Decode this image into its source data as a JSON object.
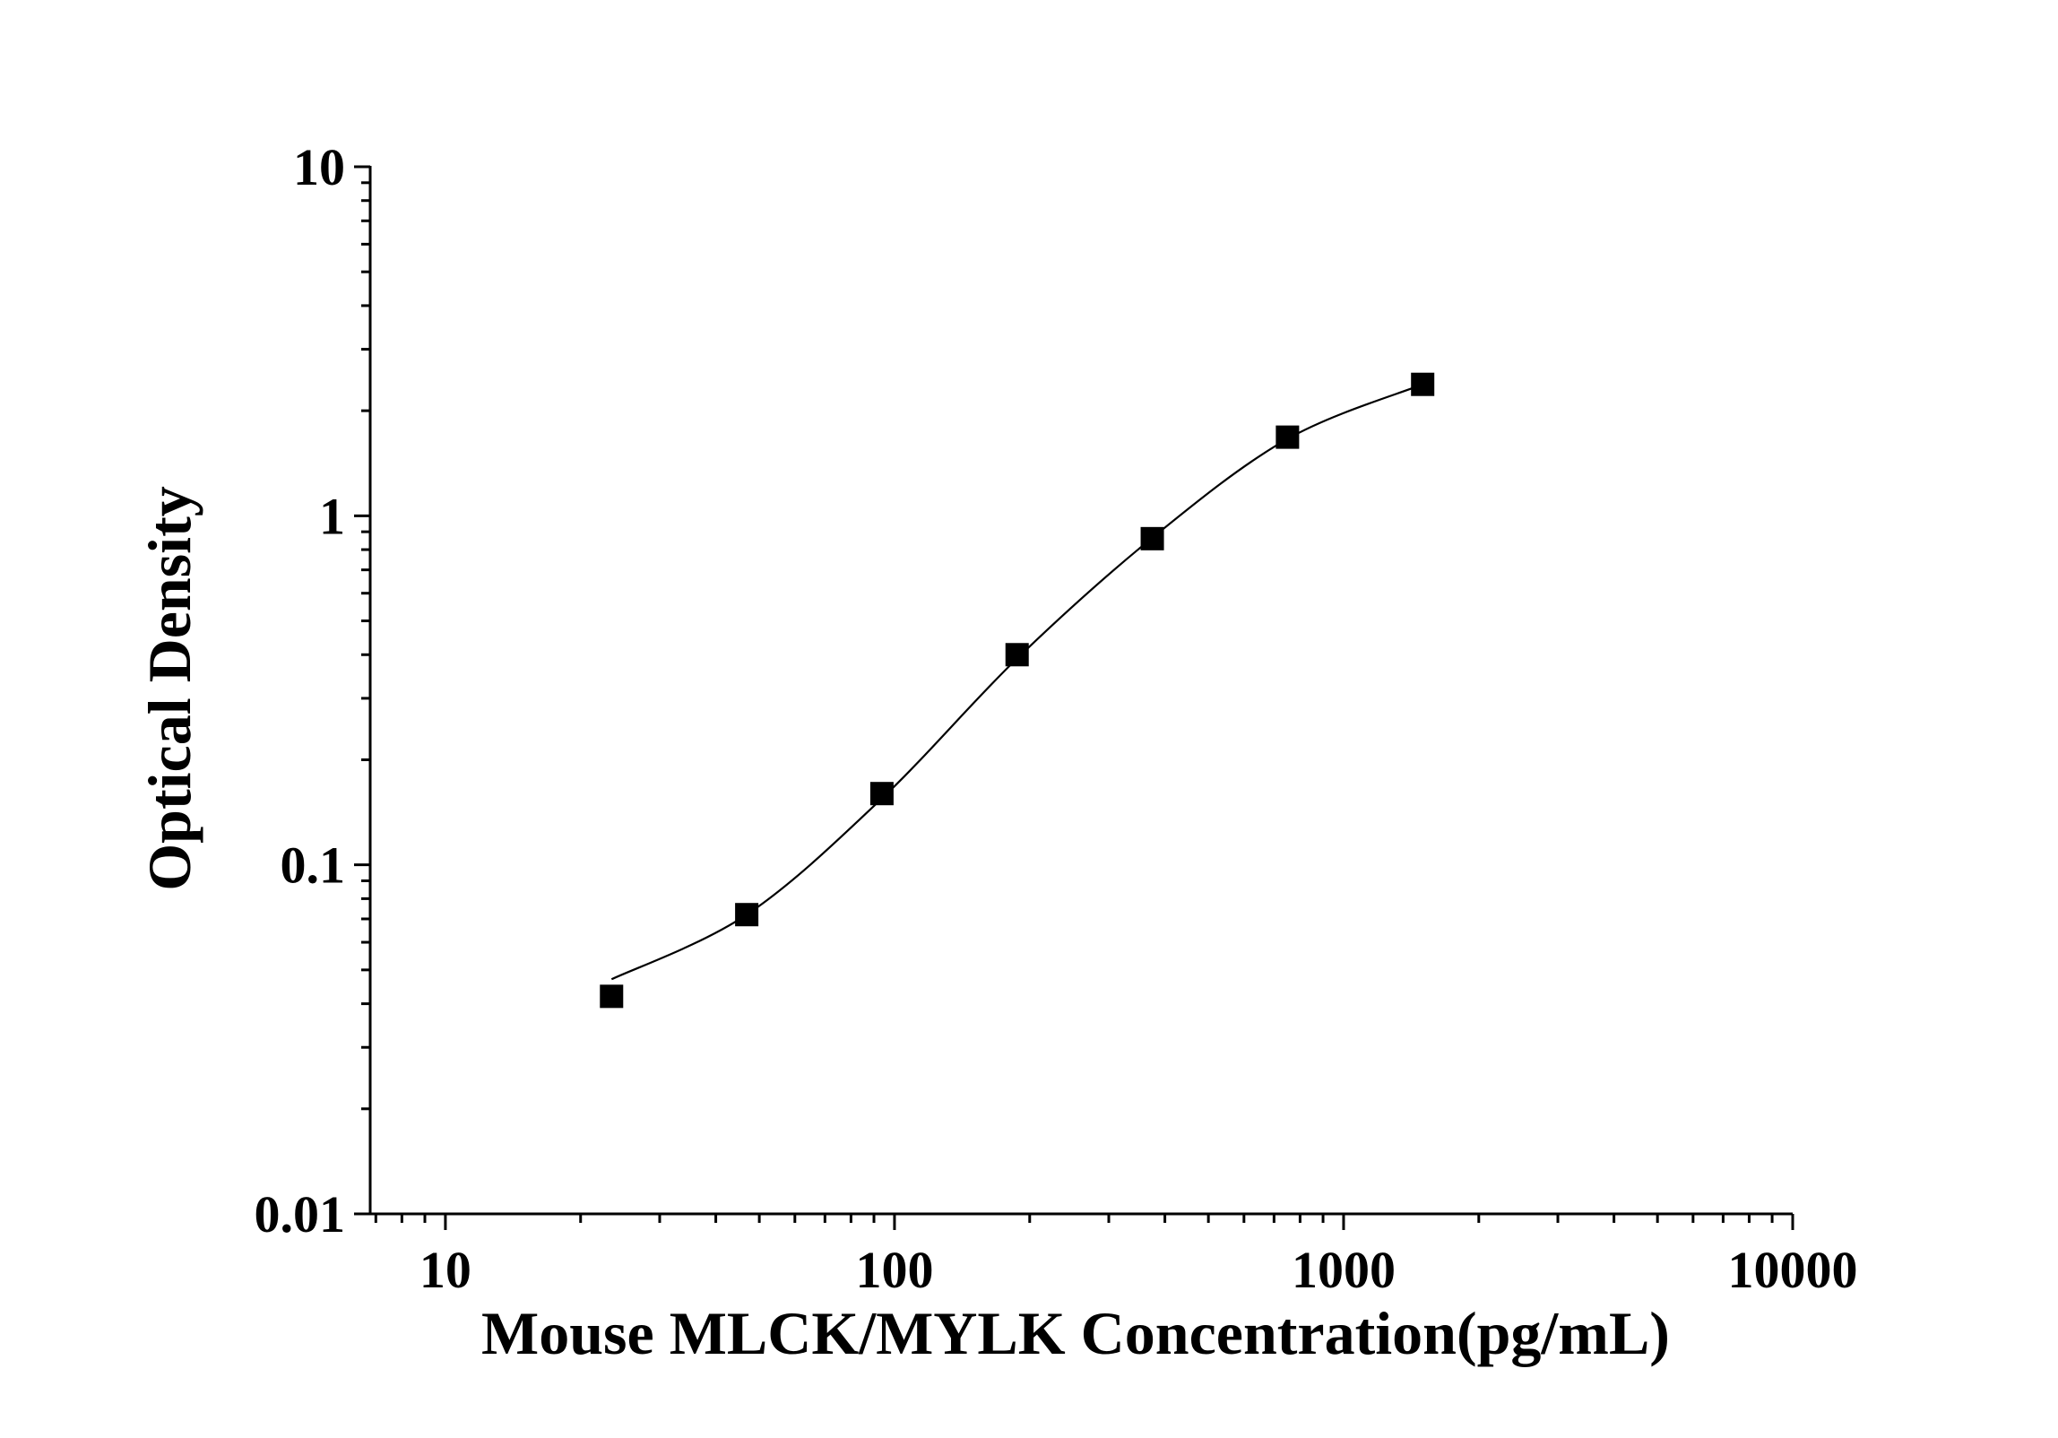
{
  "chart_data": {
    "type": "scatter",
    "title": "",
    "xlabel": "Mouse MLCK/MYLK Concentration(pg/mL)",
    "ylabel": "Optical Density",
    "x_scale": "log",
    "y_scale": "log",
    "xlim": [
      6.8,
      10000
    ],
    "ylim": [
      0.01,
      10
    ],
    "x_ticks": [
      10,
      100,
      1000,
      10000
    ],
    "x_tick_labels": [
      "10",
      "100",
      "1000",
      "10000"
    ],
    "y_ticks": [
      0.01,
      0.1,
      1,
      10
    ],
    "y_tick_labels": [
      "0.01",
      "0.1",
      "1",
      "10"
    ],
    "grid": false,
    "legend": "none",
    "series": [
      {
        "x": [
          23.44,
          46.88,
          93.75,
          187.5,
          375,
          750,
          1500
        ],
        "y": [
          0.042,
          0.072,
          0.16,
          0.4,
          0.86,
          1.68,
          2.38
        ],
        "marker": "square",
        "color": "#000000"
      }
    ],
    "fit_curve": {
      "x": [
        23.44,
        46.88,
        93.75,
        187.5,
        375,
        750,
        1500
      ],
      "y": [
        0.047,
        0.072,
        0.155,
        0.39,
        0.865,
        1.66,
        2.38
      ],
      "color": "#000000"
    }
  }
}
